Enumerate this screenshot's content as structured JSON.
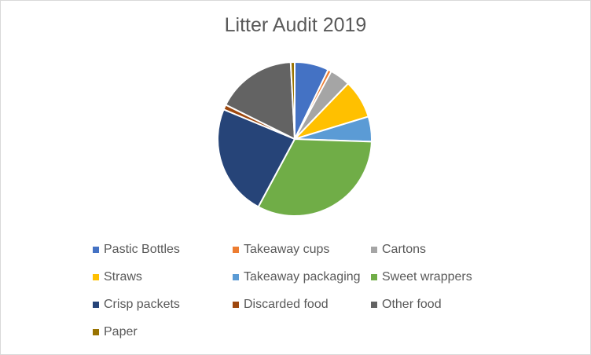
{
  "chart_data": {
    "type": "pie",
    "title": "Litter Audit 2019",
    "legend_position": "bottom",
    "slices": [
      {
        "label": "Pastic Bottles",
        "value": 6.8,
        "color": "#4472C4"
      },
      {
        "label": "Takeaway cups",
        "value": 0.7,
        "color": "#ED7D31"
      },
      {
        "label": "Cartons",
        "value": 4.1,
        "color": "#A5A5A5"
      },
      {
        "label": "Straws",
        "value": 7.7,
        "color": "#FFC000"
      },
      {
        "label": "Takeaway packaging",
        "value": 5.0,
        "color": "#5B9BD5"
      },
      {
        "label": "Sweet wrappers",
        "value": 30.7,
        "color": "#70AD47"
      },
      {
        "label": "Crisp packets",
        "value": 22.3,
        "color": "#264478"
      },
      {
        "label": "Discarded food",
        "value": 1.0,
        "color": "#9E480E"
      },
      {
        "label": "Other food",
        "value": 16.0,
        "color": "#636363"
      },
      {
        "label": "Paper",
        "value": 0.8,
        "color": "#997300"
      }
    ]
  }
}
